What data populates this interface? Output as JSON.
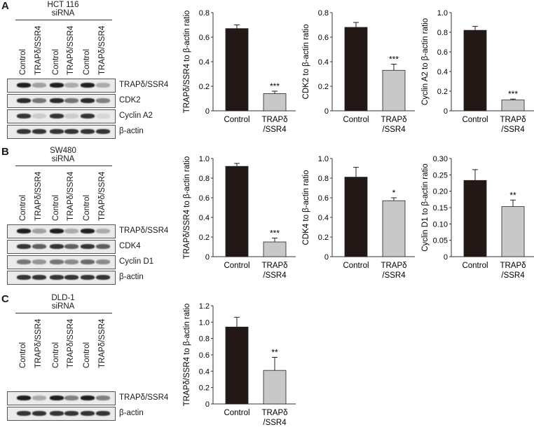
{
  "panels": [
    {
      "letter": "A",
      "cell_line": "HCT 116",
      "treatment": "siRNA",
      "lanes": [
        "Control",
        "TRAPδ/SSR4",
        "Control",
        "TRAPδ/SSR4",
        "Control",
        "TRAPδ/SSR4"
      ],
      "blots": [
        {
          "label": "TRAPδ/SSR4",
          "intensity": [
            0.95,
            0.35,
            0.95,
            0.3,
            0.95,
            0.3
          ]
        },
        {
          "label": "CDK2",
          "intensity": [
            0.9,
            0.55,
            0.9,
            0.55,
            0.9,
            0.5
          ]
        },
        {
          "label": "Cyclin A2",
          "intensity": [
            0.85,
            0.15,
            0.85,
            0.15,
            0.85,
            0.1
          ]
        },
        {
          "label": "β-actin",
          "intensity": [
            0.85,
            0.85,
            0.85,
            0.85,
            0.85,
            0.85
          ]
        }
      ],
      "charts": [
        {
          "ylabel": "TRAPδ/SSR4 to β-actin ratio",
          "ylim": [
            0,
            0.8
          ],
          "ticks": [
            "0",
            "0.2",
            "0.4",
            "0.6",
            "0.8"
          ],
          "tick_values": [
            0,
            0.2,
            0.4,
            0.6,
            0.8
          ],
          "control": 0.67,
          "control_err": 0.03,
          "knockdown": 0.14,
          "knockdown_err": 0.02,
          "sig": "***"
        },
        {
          "ylabel": "CDK2 to β-actin ratio",
          "ylim": [
            0,
            0.8
          ],
          "ticks": [
            "0",
            "0.2",
            "0.4",
            "0.6",
            "0.8"
          ],
          "tick_values": [
            0,
            0.2,
            0.4,
            0.6,
            0.8
          ],
          "control": 0.68,
          "control_err": 0.04,
          "knockdown": 0.33,
          "knockdown_err": 0.05,
          "sig": "***"
        },
        {
          "ylabel": "Cyclin A2 to β-actin ratio",
          "ylim": [
            0,
            1.0
          ],
          "ticks": [
            "0",
            "0.2",
            "0.4",
            "0.6",
            "0.8",
            "1.0"
          ],
          "tick_values": [
            0,
            0.2,
            0.4,
            0.6,
            0.8,
            1.0
          ],
          "control": 0.82,
          "control_err": 0.04,
          "knockdown": 0.11,
          "knockdown_err": 0.01,
          "sig": "***"
        }
      ]
    },
    {
      "letter": "B",
      "cell_line": "SW480",
      "treatment": "siRNA",
      "lanes": [
        "Control",
        "TRAPδ/SSR4",
        "Control",
        "TRAPδ/SSR4",
        "Control",
        "TRAPδ/SSR4"
      ],
      "blots": [
        {
          "label": "TRAPδ/SSR4",
          "intensity": [
            0.95,
            0.35,
            0.95,
            0.3,
            0.95,
            0.3
          ]
        },
        {
          "label": "CDK4",
          "intensity": [
            0.85,
            0.65,
            0.85,
            0.65,
            0.85,
            0.65
          ]
        },
        {
          "label": "Cyclin D1",
          "intensity": [
            0.55,
            0.4,
            0.55,
            0.45,
            0.6,
            0.45
          ]
        },
        {
          "label": "β-actin",
          "intensity": [
            0.85,
            0.85,
            0.85,
            0.85,
            0.85,
            0.85
          ]
        }
      ],
      "charts": [
        {
          "ylabel": "TRAPδ/SSR4 to β-actin ratio",
          "ylim": [
            0,
            1.0
          ],
          "ticks": [
            "0",
            "0.2",
            "0.4",
            "0.6",
            "0.8",
            "1.0"
          ],
          "tick_values": [
            0,
            0.2,
            0.4,
            0.6,
            0.8,
            1.0
          ],
          "control": 0.92,
          "control_err": 0.03,
          "knockdown": 0.15,
          "knockdown_err": 0.04,
          "sig": "***"
        },
        {
          "ylabel": "CDK4 to β-actin ratio",
          "ylim": [
            0,
            1.0
          ],
          "ticks": [
            "0",
            "0.2",
            "0.4",
            "0.6",
            "0.8",
            "1.0"
          ],
          "tick_values": [
            0,
            0.2,
            0.4,
            0.6,
            0.8,
            1.0
          ],
          "control": 0.81,
          "control_err": 0.1,
          "knockdown": 0.57,
          "knockdown_err": 0.03,
          "sig": "*"
        },
        {
          "ylabel": "Cyclin D1 to β-actin ratio",
          "ylim": [
            0,
            0.3
          ],
          "ticks": [
            "0",
            "0.05",
            "0.10",
            "0.15",
            "0.20",
            "0.25",
            "0.30"
          ],
          "tick_values": [
            0,
            0.05,
            0.1,
            0.15,
            0.2,
            0.25,
            0.3
          ],
          "control": 0.233,
          "control_err": 0.033,
          "knockdown": 0.153,
          "knockdown_err": 0.02,
          "sig": "**"
        }
      ]
    },
    {
      "letter": "C",
      "cell_line": "DLD-1",
      "treatment": "siRNA",
      "lanes": [
        "Control",
        "TRAPδ/SSR4",
        "Control",
        "TRAPδ/SSR4",
        "Control",
        "TRAPδ/SSR4"
      ],
      "blots": [
        {
          "label": "TRAPδ/SSR4",
          "intensity": [
            0.95,
            0.3,
            0.95,
            0.5,
            0.95,
            0.5
          ]
        },
        {
          "label": "β-actin",
          "intensity": [
            0.85,
            0.85,
            0.85,
            0.85,
            0.85,
            0.85
          ]
        }
      ],
      "charts": [
        {
          "ylabel": "TRAPδ/SSR4 to β-actin ratio",
          "ylim": [
            0,
            1.2
          ],
          "ticks": [
            "0",
            "0.2",
            "0.4",
            "0.6",
            "0.8",
            "1.0",
            "1.2"
          ],
          "tick_values": [
            0,
            0.2,
            0.4,
            0.6,
            0.8,
            1.0,
            1.2
          ],
          "control": 0.94,
          "control_err": 0.12,
          "knockdown": 0.41,
          "knockdown_err": 0.16,
          "sig": "**"
        }
      ]
    }
  ],
  "x_categories": [
    "Control",
    "TRAPδ",
    "/SSR4"
  ],
  "colors": {
    "control_bar": "#231815",
    "knockdown_bar": "#c8c8c8",
    "axis": "#333333"
  },
  "chart_data": [
    {
      "type": "bar",
      "panel": "A",
      "categories": [
        "Control",
        "TRAPδ/SSR4"
      ],
      "values": [
        0.67,
        0.14
      ],
      "errors": [
        0.03,
        0.02
      ],
      "ylabel": "TRAPδ/SSR4 to β-actin ratio",
      "ylim": [
        0,
        0.8
      ],
      "annotation": "***"
    },
    {
      "type": "bar",
      "panel": "A",
      "categories": [
        "Control",
        "TRAPδ/SSR4"
      ],
      "values": [
        0.68,
        0.33
      ],
      "errors": [
        0.04,
        0.05
      ],
      "ylabel": "CDK2 to β-actin ratio",
      "ylim": [
        0,
        0.8
      ],
      "annotation": "***"
    },
    {
      "type": "bar",
      "panel": "A",
      "categories": [
        "Control",
        "TRAPδ/SSR4"
      ],
      "values": [
        0.82,
        0.11
      ],
      "errors": [
        0.04,
        0.01
      ],
      "ylabel": "Cyclin A2 to β-actin ratio",
      "ylim": [
        0,
        1.0
      ],
      "annotation": "***"
    },
    {
      "type": "bar",
      "panel": "B",
      "categories": [
        "Control",
        "TRAPδ/SSR4"
      ],
      "values": [
        0.92,
        0.15
      ],
      "errors": [
        0.03,
        0.04
      ],
      "ylabel": "TRAPδ/SSR4 to β-actin ratio",
      "ylim": [
        0,
        1.0
      ],
      "annotation": "***"
    },
    {
      "type": "bar",
      "panel": "B",
      "categories": [
        "Control",
        "TRAPδ/SSR4"
      ],
      "values": [
        0.81,
        0.57
      ],
      "errors": [
        0.1,
        0.03
      ],
      "ylabel": "CDK4 to β-actin ratio",
      "ylim": [
        0,
        1.0
      ],
      "annotation": "*"
    },
    {
      "type": "bar",
      "panel": "B",
      "categories": [
        "Control",
        "TRAPδ/SSR4"
      ],
      "values": [
        0.233,
        0.153
      ],
      "errors": [
        0.033,
        0.02
      ],
      "ylabel": "Cyclin D1 to β-actin ratio",
      "ylim": [
        0,
        0.3
      ],
      "annotation": "**"
    },
    {
      "type": "bar",
      "panel": "C",
      "categories": [
        "Control",
        "TRAPδ/SSR4"
      ],
      "values": [
        0.94,
        0.41
      ],
      "errors": [
        0.12,
        0.16
      ],
      "ylabel": "TRAPδ/SSR4 to β-actin ratio",
      "ylim": [
        0,
        1.2
      ],
      "annotation": "**"
    }
  ]
}
